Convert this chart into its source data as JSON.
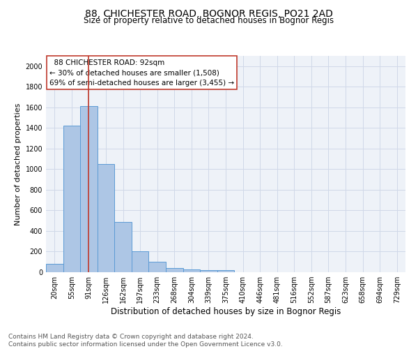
{
  "title1": "88, CHICHESTER ROAD, BOGNOR REGIS, PO21 2AD",
  "title2": "Size of property relative to detached houses in Bognor Regis",
  "xlabel": "Distribution of detached houses by size in Bognor Regis",
  "ylabel": "Number of detached properties",
  "footnote": "Contains HM Land Registry data © Crown copyright and database right 2024.\nContains public sector information licensed under the Open Government Licence v3.0.",
  "bins": [
    "20sqm",
    "55sqm",
    "91sqm",
    "126sqm",
    "162sqm",
    "197sqm",
    "233sqm",
    "268sqm",
    "304sqm",
    "339sqm",
    "375sqm",
    "410sqm",
    "446sqm",
    "481sqm",
    "516sqm",
    "552sqm",
    "587sqm",
    "623sqm",
    "658sqm",
    "694sqm",
    "729sqm"
  ],
  "values": [
    80,
    1420,
    1610,
    1050,
    490,
    205,
    105,
    40,
    30,
    22,
    18,
    0,
    0,
    0,
    0,
    0,
    0,
    0,
    0,
    0,
    0
  ],
  "bar_color": "#adc6e5",
  "bar_edge_color": "#5b9bd5",
  "grid_color": "#d0d8e8",
  "bg_color": "#eef2f8",
  "vline_x": 2,
  "vline_color": "#c0392b",
  "annotation_text": "  88 CHICHESTER ROAD: 92sqm\n← 30% of detached houses are smaller (1,508)\n69% of semi-detached houses are larger (3,455) →",
  "annotation_box_color": "#ffffff",
  "annotation_box_edge": "#c0392b",
  "ylim": [
    0,
    2100
  ],
  "yticks": [
    0,
    200,
    400,
    600,
    800,
    1000,
    1200,
    1400,
    1600,
    1800,
    2000
  ],
  "title1_fontsize": 10,
  "title2_fontsize": 8.5,
  "xlabel_fontsize": 8.5,
  "ylabel_fontsize": 8,
  "tick_fontsize": 7,
  "annotation_fontsize": 7.5,
  "footnote_fontsize": 6.5
}
